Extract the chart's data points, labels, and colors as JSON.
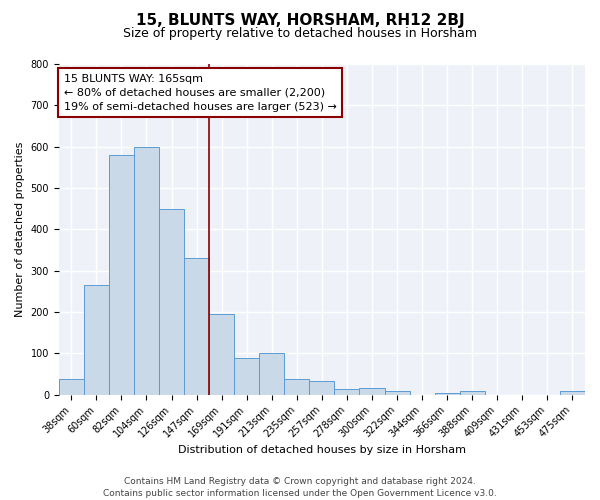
{
  "title": "15, BLUNTS WAY, HORSHAM, RH12 2BJ",
  "subtitle": "Size of property relative to detached houses in Horsham",
  "xlabel": "Distribution of detached houses by size in Horsham",
  "ylabel": "Number of detached properties",
  "bar_labels": [
    "38sqm",
    "60sqm",
    "82sqm",
    "104sqm",
    "126sqm",
    "147sqm",
    "169sqm",
    "191sqm",
    "213sqm",
    "235sqm",
    "257sqm",
    "278sqm",
    "300sqm",
    "322sqm",
    "344sqm",
    "366sqm",
    "388sqm",
    "409sqm",
    "431sqm",
    "453sqm",
    "475sqm"
  ],
  "bar_values": [
    37,
    265,
    580,
    600,
    450,
    330,
    195,
    88,
    100,
    38,
    32,
    15,
    16,
    10,
    0,
    5,
    10,
    0,
    0,
    0,
    8
  ],
  "bar_color": "#c9d9e8",
  "bar_edge_color": "#5b9bd5",
  "vline_index": 6,
  "vline_color": "#8b0000",
  "annotation_text": "15 BLUNTS WAY: 165sqm\n← 80% of detached houses are smaller (2,200)\n19% of semi-detached houses are larger (523) →",
  "annotation_box_facecolor": "#ffffff",
  "annotation_box_edgecolor": "#8b0000",
  "ylim": [
    0,
    800
  ],
  "yticks": [
    0,
    100,
    200,
    300,
    400,
    500,
    600,
    700,
    800
  ],
  "footer": "Contains HM Land Registry data © Crown copyright and database right 2024.\nContains public sector information licensed under the Open Government Licence v3.0.",
  "fig_facecolor": "#ffffff",
  "ax_facecolor": "#eef2f8",
  "grid_color": "#ffffff",
  "title_fontsize": 11,
  "subtitle_fontsize": 9,
  "axis_label_fontsize": 8,
  "tick_fontsize": 7,
  "annotation_fontsize": 8,
  "footer_fontsize": 6.5
}
